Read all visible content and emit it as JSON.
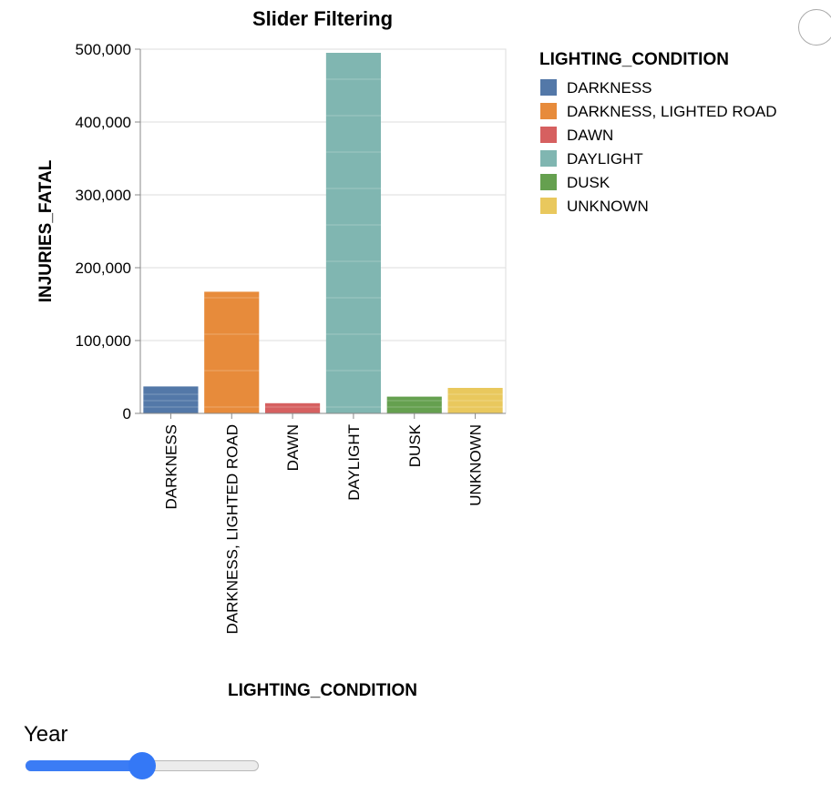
{
  "chart_data": {
    "type": "bar",
    "title": "Slider Filtering",
    "xlabel": "LIGHTING_CONDITION",
    "ylabel": "INJURIES_FATAL",
    "categories": [
      "DARKNESS",
      "DARKNESS, LIGHTED ROAD",
      "DAWN",
      "DAYLIGHT",
      "DUSK",
      "UNKNOWN"
    ],
    "values": [
      37000,
      167000,
      14000,
      495000,
      23000,
      35000
    ],
    "ylim": [
      0,
      500000
    ],
    "yticks": [
      0,
      100000,
      200000,
      300000,
      400000,
      500000
    ],
    "ytick_labels": [
      "0",
      "100,000",
      "200,000",
      "300,000",
      "400,000",
      "500,000"
    ],
    "colors": [
      "#5378a8",
      "#e78b3b",
      "#d66060",
      "#80b6b1",
      "#65a04f",
      "#e9c85d"
    ],
    "legend": {
      "title": "LIGHTING_CONDITION",
      "position": "right",
      "entries": [
        "DARKNESS",
        "DARKNESS, LIGHTED ROAD",
        "DAWN",
        "DAYLIGHT",
        "DUSK",
        "UNKNOWN"
      ]
    },
    "grid": true
  },
  "slider": {
    "label": "Year",
    "value_fraction": 0.5,
    "track_color": "#3b7cf5"
  },
  "corner_button": {
    "icon": "circle-button-icon"
  }
}
